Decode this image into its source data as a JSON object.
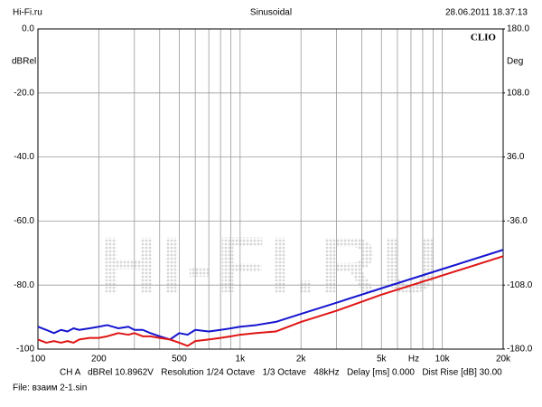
{
  "chart_data": {
    "type": "line",
    "header_left": "Hi-Fi.ru",
    "title": "Sinusoidal",
    "header_right": "28.06.2011 18.37.13",
    "ylabel": "dBRel",
    "y2label": "Deg",
    "brand": "CLIO",
    "watermark": "HI-FI.RU",
    "xlabel": "Hz",
    "footer": "CH A   dBRel 10.8962V   Resolution 1/24 Octave   1/3 Octave   48kHz   Delay [ms] 0.000   Dist Rise [dB] 30.00",
    "file": "File: взаим 2-1.sin",
    "xscale": "log",
    "grid": true,
    "xlim": [
      100,
      20000
    ],
    "xticks": [
      100,
      200,
      500,
      {
        "value": 1000,
        "label": "1k"
      },
      {
        "value": 2000,
        "label": "2k"
      },
      {
        "value": 5000,
        "label": "5k"
      },
      {
        "value": 10000,
        "label": "10k"
      },
      {
        "value": 20000,
        "label": "20k"
      }
    ],
    "xminor": [
      300,
      400,
      600,
      700,
      800,
      900,
      3000,
      4000,
      6000,
      7000,
      8000,
      9000
    ],
    "ylim": [
      -100,
      0
    ],
    "yticks": [
      {
        "value": 0,
        "label": "0.0"
      },
      {
        "value": -20,
        "label": "-20.0"
      },
      {
        "value": -40,
        "label": "-40.0"
      },
      {
        "value": -60,
        "label": "-60.0"
      },
      {
        "value": -80,
        "label": "-80.0"
      },
      {
        "value": -100,
        "label": "-100"
      }
    ],
    "y2lim": [
      -180,
      180
    ],
    "y2ticks": [
      {
        "value": 180,
        "label": "180.0"
      },
      {
        "value": 108,
        "label": "108.0"
      },
      {
        "value": 36,
        "label": "36.0"
      },
      {
        "value": -36,
        "label": "-36.0"
      },
      {
        "value": -108,
        "label": "-108.0"
      },
      {
        "value": -180,
        "label": "-180.0"
      }
    ],
    "x": [
      100,
      110,
      120,
      130,
      140,
      150,
      160,
      180,
      200,
      220,
      250,
      280,
      300,
      330,
      360,
      400,
      450,
      500,
      550,
      600,
      700,
      800,
      900,
      1000,
      1200,
      1500,
      2000,
      3000,
      5000,
      10000,
      20000
    ],
    "series": [
      {
        "color": "#1515d0",
        "values": [
          -93,
          -94,
          -95,
          -94,
          -94.5,
          -93.5,
          -94,
          -93.5,
          -93,
          -92.5,
          -93.5,
          -93,
          -94,
          -94,
          -95,
          -96,
          -97,
          -95,
          -95.5,
          -94,
          -94.5,
          -94,
          -93.5,
          -93,
          -92.5,
          -91.5,
          -89,
          -85.5,
          -81,
          -75,
          -69
        ]
      },
      {
        "color": "#e01515",
        "values": [
          -97,
          -98,
          -97.5,
          -98,
          -97.5,
          -98,
          -97,
          -96.5,
          -96.5,
          -96,
          -95,
          -95.5,
          -95,
          -96,
          -96,
          -96.5,
          -97,
          -98,
          -99,
          -97.5,
          -97,
          -96.5,
          -96,
          -95.5,
          -95,
          -94.5,
          -91.5,
          -88,
          -83,
          -77,
          -71
        ]
      }
    ]
  }
}
